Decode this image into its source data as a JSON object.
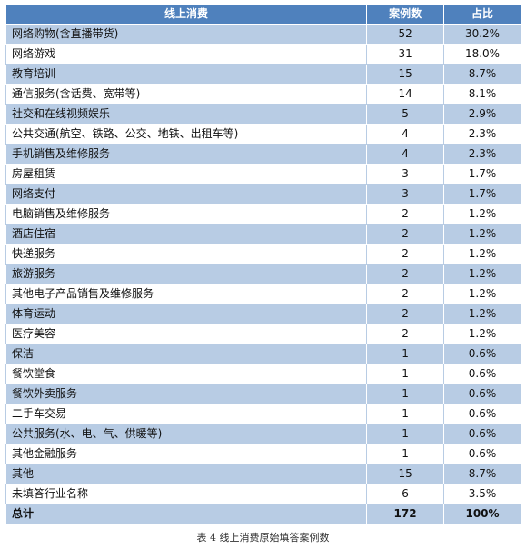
{
  "table": {
    "headers": {
      "name": "线上消费",
      "count": "案例数",
      "share": "占比"
    },
    "rows": [
      {
        "name": "网络购物(含直播带货)",
        "count": "52",
        "share": "30.2%"
      },
      {
        "name": "网络游戏",
        "count": "31",
        "share": "18.0%"
      },
      {
        "name": "教育培训",
        "count": "15",
        "share": "8.7%"
      },
      {
        "name": "通信服务(含话费、宽带等)",
        "count": "14",
        "share": "8.1%"
      },
      {
        "name": "社交和在线视频娱乐",
        "count": "5",
        "share": "2.9%"
      },
      {
        "name": "公共交通(航空、铁路、公交、地铁、出租车等)",
        "count": "4",
        "share": "2.3%"
      },
      {
        "name": "手机销售及维修服务",
        "count": "4",
        "share": "2.3%"
      },
      {
        "name": "房屋租赁",
        "count": "3",
        "share": "1.7%"
      },
      {
        "name": "网络支付",
        "count": "3",
        "share": "1.7%"
      },
      {
        "name": "电脑销售及维修服务",
        "count": "2",
        "share": "1.2%"
      },
      {
        "name": "酒店住宿",
        "count": "2",
        "share": "1.2%"
      },
      {
        "name": "快递服务",
        "count": "2",
        "share": "1.2%"
      },
      {
        "name": "旅游服务",
        "count": "2",
        "share": "1.2%"
      },
      {
        "name": "其他电子产品销售及维修服务",
        "count": "2",
        "share": "1.2%"
      },
      {
        "name": "体育运动",
        "count": "2",
        "share": "1.2%"
      },
      {
        "name": "医疗美容",
        "count": "2",
        "share": "1.2%"
      },
      {
        "name": "保洁",
        "count": "1",
        "share": "0.6%"
      },
      {
        "name": "餐饮堂食",
        "count": "1",
        "share": "0.6%"
      },
      {
        "name": "餐饮外卖服务",
        "count": "1",
        "share": "0.6%"
      },
      {
        "name": "二手车交易",
        "count": "1",
        "share": "0.6%"
      },
      {
        "name": "公共服务(水、电、气、供暖等)",
        "count": "1",
        "share": "0.6%"
      },
      {
        "name": "其他金融服务",
        "count": "1",
        "share": "0.6%"
      },
      {
        "name": "其他",
        "count": "15",
        "share": "8.7%"
      },
      {
        "name": "未填答行业名称",
        "count": "6",
        "share": "3.5%"
      }
    ],
    "total": {
      "name": "总计",
      "count": "172",
      "share": "100%"
    }
  },
  "caption": "表 4  线上消费原始填答案例数",
  "colors": {
    "header": "#4f81bd",
    "band": "#b8cce4"
  }
}
